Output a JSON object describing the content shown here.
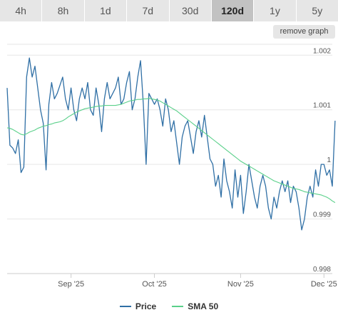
{
  "tabs": [
    {
      "label": "4h",
      "active": false
    },
    {
      "label": "8h",
      "active": false
    },
    {
      "label": "1d",
      "active": false
    },
    {
      "label": "7d",
      "active": false
    },
    {
      "label": "30d",
      "active": false
    },
    {
      "label": "120d",
      "active": true
    },
    {
      "label": "1y",
      "active": false
    },
    {
      "label": "5y",
      "active": false
    }
  ],
  "remove_graph_label": "remove graph",
  "colors": {
    "price": "#2f6fa5",
    "sma": "#5ad08a",
    "grid": "#e6e6e6"
  },
  "chart_data": {
    "type": "line",
    "x_tick_labels": [
      "Sep '25",
      "Oct '25",
      "Nov '25",
      "Dec '25"
    ],
    "x_tick_positions": [
      23,
      53,
      84,
      114
    ],
    "x_range": [
      0,
      117
    ],
    "ylim": [
      0.998,
      1.0022
    ],
    "y_ticks": [
      {
        "value": 0.998,
        "label": "0.998"
      },
      {
        "value": 0.999,
        "label": "0.999"
      },
      {
        "value": 1.0,
        "label": "1"
      },
      {
        "value": 1.001,
        "label": "1.001"
      },
      {
        "value": 1.002,
        "label": "1.002"
      }
    ],
    "legend": [
      "Price",
      "SMA 50"
    ],
    "grid": true,
    "series": [
      {
        "name": "Price",
        "values": [
          1.0014,
          1.00035,
          1.0003,
          1.0002,
          1.00045,
          0.99985,
          0.99995,
          1.0016,
          1.00195,
          1.0016,
          1.0018,
          1.0014,
          1.001,
          1.00075,
          0.9999,
          1.0011,
          1.0015,
          1.0012,
          1.0013,
          1.00145,
          1.0016,
          1.0012,
          1.001,
          1.0014,
          1.001,
          1.0008,
          1.0012,
          1.0014,
          1.0012,
          1.0015,
          1.001,
          1.0009,
          1.0014,
          1.0011,
          1.0006,
          1.0012,
          1.0015,
          1.0012,
          1.0013,
          1.0014,
          1.0016,
          1.0011,
          1.0012,
          1.0015,
          1.0017,
          1.001,
          1.0012,
          1.0016,
          1.0019,
          1.0011,
          1.0,
          1.0013,
          1.0012,
          1.0011,
          1.0012,
          1.001,
          1.0007,
          1.0012,
          1.001,
          1.0006,
          1.0008,
          1.0004,
          1.0,
          1.0005,
          1.0007,
          1.0008,
          1.0005,
          1.0002,
          1.0006,
          1.0008,
          1.0005,
          1.0009,
          1.0005,
          1.0001,
          1.0,
          0.9996,
          0.9998,
          0.9994,
          1.0001,
          0.9997,
          0.9995,
          0.9992,
          0.9999,
          0.9994,
          0.9998,
          0.9991,
          0.9995,
          1.0,
          0.9997,
          0.9994,
          0.9992,
          0.9996,
          0.9998,
          0.9996,
          0.9992,
          0.999,
          0.9994,
          0.9992,
          0.9995,
          0.9997,
          0.9995,
          0.9997,
          0.9993,
          0.9996,
          0.9995,
          0.9992,
          0.9988,
          0.999,
          0.9994,
          0.9996,
          0.9994,
          0.9999,
          0.9996,
          1.0,
          1.0,
          0.9998,
          0.9999,
          0.9996,
          1.0008
        ]
      },
      {
        "name": "SMA 50",
        "values": [
          1.00067,
          1.00066,
          1.00064,
          1.00061,
          1.00058,
          1.00055,
          1.00054,
          1.00056,
          1.00059,
          1.00061,
          1.00063,
          1.00066,
          1.00068,
          1.0007,
          1.00071,
          1.00073,
          1.00074,
          1.00076,
          1.00077,
          1.00078,
          1.0008,
          1.00083,
          1.00087,
          1.0009,
          1.00093,
          1.00096,
          1.00098,
          1.001,
          1.00102,
          1.00103,
          1.00104,
          1.00105,
          1.00106,
          1.00107,
          1.00107,
          1.00108,
          1.00108,
          1.00108,
          1.00108,
          1.00108,
          1.00109,
          1.0011,
          1.00112,
          1.00114,
          1.00116,
          1.00117,
          1.00118,
          1.00119,
          1.00119,
          1.0012,
          1.0012,
          1.00121,
          1.0012,
          1.00119,
          1.00118,
          1.00116,
          1.00113,
          1.0011,
          1.00107,
          1.00104,
          1.00101,
          1.00098,
          1.00094,
          1.0009,
          1.00086,
          1.00082,
          1.00078,
          1.00074,
          1.0007,
          1.00066,
          1.00062,
          1.00058,
          1.00054,
          1.0005,
          1.00046,
          1.00042,
          1.00038,
          1.00034,
          1.0003,
          1.00026,
          1.00022,
          1.00018,
          1.00014,
          1.0001,
          1.00006,
          1.00003,
          1.0,
          0.99997,
          0.99994,
          0.99991,
          0.99988,
          0.99985,
          0.99982,
          0.99979,
          0.99976,
          0.99973,
          0.9997,
          0.99968,
          0.99966,
          0.99964,
          0.99962,
          0.9996,
          0.99958,
          0.99956,
          0.99955,
          0.99954,
          0.99952,
          0.9995,
          0.99949,
          0.99948,
          0.99947,
          0.99946,
          0.99945,
          0.99944,
          0.99942,
          0.9994,
          0.99937,
          0.99933,
          0.9993
        ]
      }
    ]
  }
}
